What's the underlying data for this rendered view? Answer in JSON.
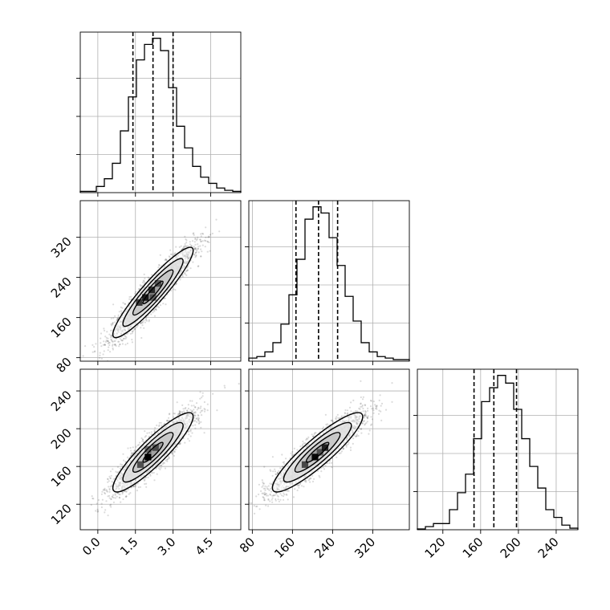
{
  "chart_data": {
    "type": "corner",
    "title": "",
    "parameters": [
      "",
      "",
      ""
    ],
    "grid": true,
    "ticks": {
      "p0": [
        0.0,
        1.5,
        3.0,
        4.5
      ],
      "p1": [
        80,
        160,
        240,
        320
      ],
      "p2": [
        120,
        160,
        200,
        240
      ]
    },
    "tick_labels": {
      "p0": [
        "0.0",
        "1.5",
        "3.0",
        "4.5"
      ],
      "p1": [
        "80",
        "160",
        "240",
        "320"
      ],
      "p2": [
        "120",
        "160",
        "200",
        "240"
      ]
    },
    "ranges": {
      "p0": [
        -0.7,
        5.7
      ],
      "p1": [
        73,
        393
      ],
      "p2": [
        93,
        263
      ]
    },
    "quantiles": {
      "p0": [
        1.4,
        2.2,
        3.0
      ],
      "p1": [
        167,
        212,
        250
      ],
      "p2": [
        153,
        174,
        198
      ]
    },
    "histograms": {
      "p0": {
        "edges_start": -0.7,
        "bin_width": 0.32,
        "counts": [
          0.008,
          0.008,
          0.04,
          0.09,
          0.19,
          0.4,
          0.62,
          0.86,
          0.96,
          1.0,
          0.92,
          0.68,
          0.43,
          0.29,
          0.17,
          0.1,
          0.06,
          0.03,
          0.015,
          0.008
        ]
      },
      "p1": {
        "edges_start": 73,
        "bin_width": 16,
        "counts": [
          0.02,
          0.03,
          0.06,
          0.12,
          0.24,
          0.43,
          0.66,
          0.92,
          1.0,
          0.96,
          0.8,
          0.62,
          0.42,
          0.26,
          0.12,
          0.06,
          0.03,
          0.02,
          0.01,
          0.01
        ]
      },
      "p2": {
        "edges_start": 93,
        "bin_width": 8.5,
        "counts": [
          0.005,
          0.02,
          0.04,
          0.04,
          0.13,
          0.24,
          0.36,
          0.59,
          0.83,
          0.92,
          1.0,
          0.95,
          0.78,
          0.59,
          0.41,
          0.27,
          0.13,
          0.08,
          0.03,
          0.01
        ]
      }
    },
    "joint": [
      {
        "x": "p0",
        "y": "p1",
        "mean": [
          2.2,
          210
        ],
        "sd": [
          0.8,
          45
        ],
        "corr": 0.93,
        "dark_cells": [
          [
            1.9,
            200,
            0.85
          ],
          [
            2.15,
            215,
            0.75
          ],
          [
            1.65,
            190,
            0.7
          ],
          [
            2.4,
            228,
            0.55
          ],
          [
            2.2,
            200,
            0.5
          ]
        ]
      },
      {
        "x": "p0",
        "y": "p2",
        "mean": [
          2.2,
          175
        ],
        "sd": [
          0.8,
          21
        ],
        "corr": 0.9,
        "dark_cells": [
          [
            2.0,
            170,
            1.0
          ],
          [
            1.7,
            162,
            0.6
          ],
          [
            2.3,
            180,
            0.55
          ],
          [
            2.0,
            178,
            0.5
          ]
        ]
      },
      {
        "x": "p1",
        "y": "p2",
        "mean": [
          210,
          175
        ],
        "sd": [
          45,
          21
        ],
        "corr": 0.9,
        "dark_cells": [
          [
            205,
            170,
            0.95
          ],
          [
            225,
            180,
            0.8
          ],
          [
            185,
            162,
            0.65
          ],
          [
            215,
            175,
            0.5
          ]
        ]
      }
    ],
    "contour_levels_sigma": [
      0.5,
      1.0,
      1.5,
      2.0
    ]
  }
}
